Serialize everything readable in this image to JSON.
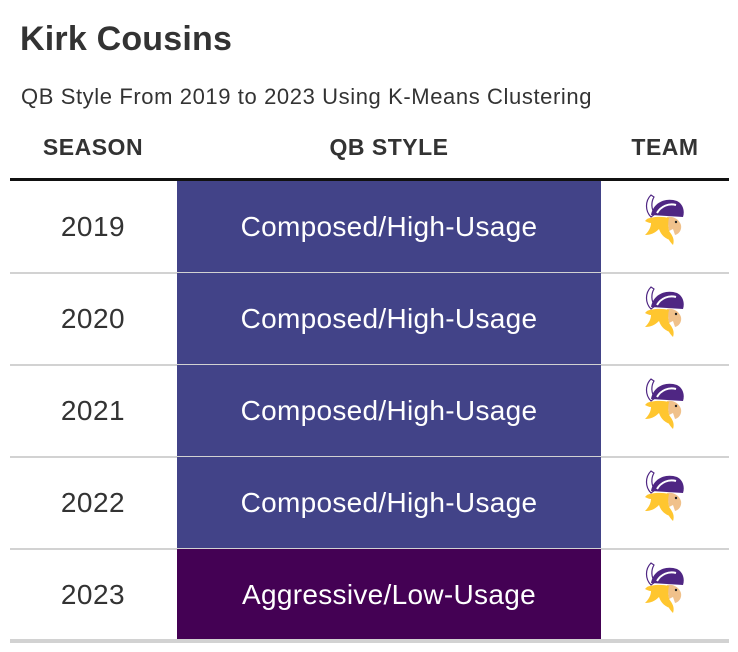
{
  "title": "Kirk Cousins",
  "subtitle": "QB Style From 2019 to 2023 Using K-Means Clustering",
  "headers": {
    "season": "SEASON",
    "style": "QB STYLE",
    "team": "TEAM"
  },
  "colors": {
    "Composed/High-Usage": "#424388",
    "Aggressive/Low-Usage": "#440154"
  },
  "chart_data": {
    "type": "table",
    "title": "Kirk Cousins",
    "subtitle": "QB Style From 2019 to 2023 Using K-Means Clustering",
    "columns": [
      "SEASON",
      "QB STYLE",
      "TEAM"
    ],
    "rows": [
      {
        "season": "2019",
        "style": "Composed/High-Usage",
        "team_icon": "vikings-logo-icon"
      },
      {
        "season": "2020",
        "style": "Composed/High-Usage",
        "team_icon": "vikings-logo-icon"
      },
      {
        "season": "2021",
        "style": "Composed/High-Usage",
        "team_icon": "vikings-logo-icon"
      },
      {
        "season": "2022",
        "style": "Composed/High-Usage",
        "team_icon": "vikings-logo-icon"
      },
      {
        "season": "2023",
        "style": "Aggressive/Low-Usage",
        "team_icon": "vikings-logo-icon"
      }
    ]
  }
}
